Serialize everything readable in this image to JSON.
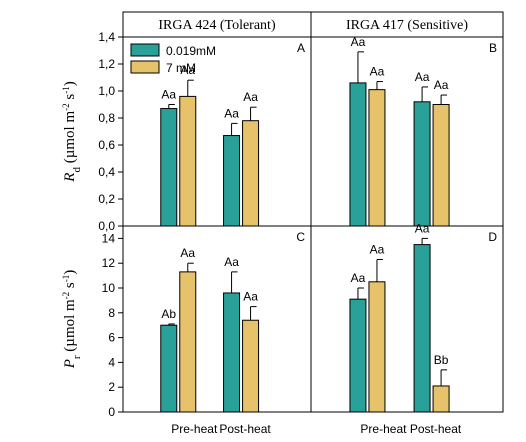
{
  "chart_data": {
    "type": "bar",
    "x_tick_labels": [
      "Pre-heat",
      "Post-heat"
    ],
    "legend": {
      "placement": "top-left",
      "entries": [
        {
          "label": "0.019mM",
          "color": "#2aa198"
        },
        {
          "label": "7 mM",
          "color": "#e6c36a"
        }
      ]
    },
    "panel_titles": [
      "IRGA 424 (Tolerant)",
      "IRGA 417 (Sensitive)"
    ],
    "rows": [
      {
        "ylabel_main": "R",
        "ylabel_sub": "d",
        "ylabel_unit": " (µmol m",
        "ylabel_exp1": "-2",
        "ylabel_mid": " s",
        "ylabel_exp2": "-1",
        "ylabel_end": ")",
        "ylim": [
          0,
          1.4
        ],
        "yticks": [
          "0,0",
          "0,2",
          "0,4",
          "0,6",
          "0,8",
          "1,0",
          "1,2",
          "1,4"
        ],
        "tick_values": [
          0,
          0.2,
          0.4,
          0.6,
          0.8,
          1.0,
          1.2,
          1.4
        ],
        "panels": [
          {
            "letter": "A",
            "groups": [
              {
                "values": [
                  0.87,
                  0.96
                ],
                "errors": [
                  0.03,
                  0.12
                ],
                "labels": [
                  "Aa",
                  "Aa"
                ]
              },
              {
                "values": [
                  0.67,
                  0.78
                ],
                "errors": [
                  0.09,
                  0.1
                ],
                "labels": [
                  "Aa",
                  "Aa"
                ]
              }
            ]
          },
          {
            "letter": "B",
            "groups": [
              {
                "values": [
                  1.06,
                  1.01
                ],
                "errors": [
                  0.23,
                  0.06
                ],
                "labels": [
                  "Aa",
                  "Aa"
                ]
              },
              {
                "values": [
                  0.92,
                  0.9
                ],
                "errors": [
                  0.11,
                  0.07
                ],
                "labels": [
                  "Aa",
                  "Aa"
                ]
              }
            ]
          }
        ]
      },
      {
        "ylabel_main": "P",
        "ylabel_sub": "r",
        "ylabel_unit": " (µmol m",
        "ylabel_exp1": "-2",
        "ylabel_mid": " s",
        "ylabel_exp2": "-1",
        "ylabel_end": ")",
        "ylim": [
          0,
          15
        ],
        "yticks": [
          "0",
          "2",
          "4",
          "6",
          "8",
          "10",
          "12",
          "14"
        ],
        "tick_values": [
          0,
          2,
          4,
          6,
          8,
          10,
          12,
          14
        ],
        "panels": [
          {
            "letter": "C",
            "groups": [
              {
                "values": [
                  7.0,
                  11.3
                ],
                "errors": [
                  0.1,
                  0.7
                ],
                "labels": [
                  "Ab",
                  "Aa"
                ]
              },
              {
                "values": [
                  9.6,
                  7.4
                ],
                "errors": [
                  1.7,
                  1.1
                ],
                "labels": [
                  "Aa",
                  "Aa"
                ]
              }
            ]
          },
          {
            "letter": "D",
            "groups": [
              {
                "values": [
                  9.1,
                  10.5
                ],
                "errors": [
                  0.9,
                  1.8
                ],
                "labels": [
                  "Aa",
                  "Aa"
                ]
              },
              {
                "values": [
                  13.5,
                  2.1
                ],
                "errors": [
                  0.5,
                  1.3
                ],
                "labels": [
                  "Aa",
                  "Bb"
                ]
              }
            ]
          }
        ]
      }
    ]
  }
}
